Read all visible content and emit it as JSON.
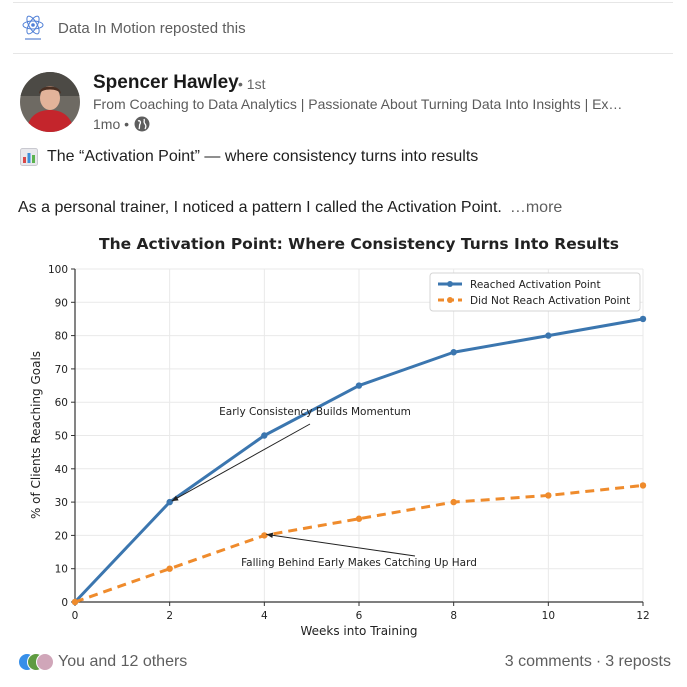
{
  "repost": {
    "text": "Data In Motion reposted this",
    "logo_icon": "atom-logo-icon"
  },
  "author": {
    "name": "Spencer Hawley",
    "degree": "• 1st",
    "headline": "From Coaching to Data Analytics | Passionate About Turning Data Into Insights | Ex…",
    "time": "1mo •",
    "visibility_icon": "globe-icon"
  },
  "post": {
    "emoji_icon": "bar-chart-emoji-icon",
    "line1": "The “Activation Point” — where consistency turns into results",
    "line2": "As a personal trainer, I noticed a pattern I called the Activation Point.",
    "more": "…more"
  },
  "chart_data": {
    "type": "line",
    "title": "The Activation Point: Where Consistency Turns Into Results",
    "xlabel": "Weeks into Training",
    "ylabel": "% of Clients Reaching Goals",
    "x": [
      0,
      2,
      4,
      6,
      8,
      10,
      12
    ],
    "xticks": [
      "0",
      "2",
      "4",
      "6",
      "8",
      "10",
      "12"
    ],
    "yticks": [
      "0",
      "10",
      "20",
      "30",
      "40",
      "50",
      "60",
      "70",
      "80",
      "90",
      "100"
    ],
    "xlim": [
      0,
      12
    ],
    "ylim": [
      0,
      100
    ],
    "grid": true,
    "legend_position": "top-right",
    "series": [
      {
        "name": "Reached Activation Point",
        "values": [
          0,
          30,
          50,
          65,
          75,
          80,
          85
        ],
        "color": "#3b76af",
        "style": "solid"
      },
      {
        "name": "Did Not Reach Activation Point",
        "values": [
          0,
          10,
          20,
          25,
          30,
          32,
          35
        ],
        "color": "#ef8b2c",
        "style": "dashed"
      }
    ],
    "annotations": [
      {
        "text": "Early Consistency Builds Momentum",
        "x": 2,
        "y": 30
      },
      {
        "text": "Falling Behind Early Makes Catching Up Hard",
        "x": 4,
        "y": 20
      }
    ]
  },
  "social": {
    "reactions_text": "You and 12 others",
    "comments": "3 comments",
    "separator": "·",
    "reposts": "3 reposts"
  },
  "colors": {
    "series1": "#3b76af",
    "series2": "#ef8b2c",
    "text_muted": "#5e5e5e"
  }
}
